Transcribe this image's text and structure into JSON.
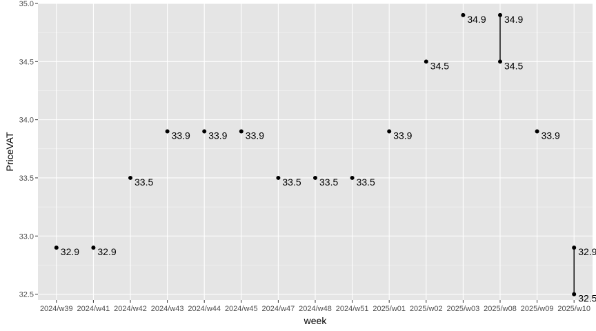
{
  "chart_data": {
    "type": "scatter",
    "xlabel": "week",
    "ylabel": "PriceVAT",
    "categories": [
      "2024/w39",
      "2024/w41",
      "2024/w42",
      "2024/w43",
      "2024/w44",
      "2024/w45",
      "2024/w47",
      "2024/w48",
      "2024/w51",
      "2025/w01",
      "2025/w02",
      "2025/w03",
      "2025/w08",
      "2025/w09",
      "2025/w10"
    ],
    "points": [
      {
        "x": "2024/w39",
        "y": 32.9,
        "label": "32.9"
      },
      {
        "x": "2024/w41",
        "y": 32.9,
        "label": "32.9"
      },
      {
        "x": "2024/w42",
        "y": 33.5,
        "label": "33.5"
      },
      {
        "x": "2024/w43",
        "y": 33.9,
        "label": "33.9"
      },
      {
        "x": "2024/w44",
        "y": 33.9,
        "label": "33.9"
      },
      {
        "x": "2024/w45",
        "y": 33.9,
        "label": "33.9"
      },
      {
        "x": "2024/w47",
        "y": 33.5,
        "label": "33.5"
      },
      {
        "x": "2024/w48",
        "y": 33.5,
        "label": "33.5"
      },
      {
        "x": "2024/w51",
        "y": 33.5,
        "label": "33.5"
      },
      {
        "x": "2025/w01",
        "y": 33.9,
        "label": "33.9"
      },
      {
        "x": "2025/w02",
        "y": 34.5,
        "label": "34.5"
      },
      {
        "x": "2025/w03",
        "y": 34.9,
        "label": "34.9"
      },
      {
        "x": "2025/w08",
        "y": 34.9,
        "label": "34.9"
      },
      {
        "x": "2025/w08",
        "y": 34.5,
        "label": "34.5"
      },
      {
        "x": "2025/w09",
        "y": 33.9,
        "label": "33.9"
      },
      {
        "x": "2025/w10",
        "y": 32.9,
        "label": "32.9"
      },
      {
        "x": "2025/w10",
        "y": 32.5,
        "label": "32.5"
      }
    ],
    "ranges": [
      {
        "x": "2025/w08",
        "ymin": 34.5,
        "ymax": 34.9
      },
      {
        "x": "2025/w10",
        "ymin": 32.5,
        "ymax": 32.9
      }
    ],
    "yticks": [
      32.5,
      33.0,
      33.5,
      34.0,
      34.5,
      35.0
    ],
    "yticklabels": [
      "32.5",
      "33.0",
      "33.5",
      "34.0",
      "34.5",
      "35.0"
    ],
    "ylim": [
      32.45,
      35.0
    ],
    "grid": true,
    "colors": {
      "panel": "#e5e5e5",
      "grid_major": "#ffffff",
      "point": "#000000"
    }
  }
}
